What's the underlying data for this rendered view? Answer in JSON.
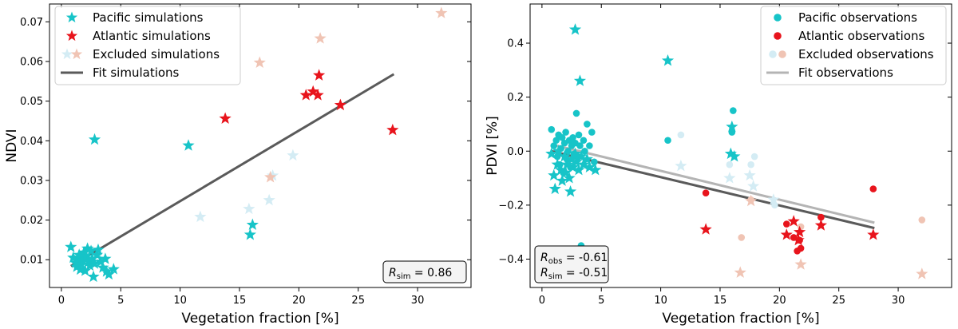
{
  "chart_data": [
    {
      "type": "scatter",
      "title": "",
      "xlabel": "Vegetation fraction [%]",
      "ylabel": "NDVI",
      "xlim": [
        -1,
        34.5
      ],
      "ylim": [
        0.003,
        0.0745
      ],
      "xticks": [
        0,
        5,
        10,
        15,
        20,
        25,
        30
      ],
      "xtick_labels": [
        "0",
        "5",
        "10",
        "15",
        "20",
        "25",
        "30"
      ],
      "yticks": [
        0.01,
        0.02,
        0.03,
        0.04,
        0.05,
        0.06,
        0.07
      ],
      "ytick_labels": [
        "0.01",
        "0.02",
        "0.03",
        "0.04",
        "0.05",
        "0.06",
        "0.07"
      ],
      "legend_position": "top-left",
      "legend": [
        {
          "label": "Pacific simulations",
          "marker": "star",
          "color": "#17c4c8"
        },
        {
          "label": "Atlantic simulations",
          "marker": "star",
          "color": "#e8141c"
        },
        {
          "label": "Excluded simulations",
          "marker": "star-pair",
          "colors": [
            "#d4ecf4",
            "#f0c4b4"
          ]
        },
        {
          "label": "Fit simulations",
          "marker": "line",
          "color": "#5a5a5a"
        }
      ],
      "series": [
        {
          "name": "Pacific simulations",
          "marker": "star",
          "color": "#17c4c8",
          "points": [
            [
              0.8,
              0.0132
            ],
            [
              1.0,
              0.0105
            ],
            [
              1.2,
              0.0092
            ],
            [
              1.3,
              0.0082
            ],
            [
              1.4,
              0.01
            ],
            [
              1.5,
              0.0112
            ],
            [
              1.6,
              0.0075
            ],
            [
              1.7,
              0.0088
            ],
            [
              1.8,
              0.0098
            ],
            [
              1.9,
              0.0118
            ],
            [
              2.0,
              0.0072
            ],
            [
              2.1,
              0.0108
            ],
            [
              2.2,
              0.0128
            ],
            [
              2.3,
              0.0095
            ],
            [
              2.4,
              0.0085
            ],
            [
              2.5,
              0.0122
            ],
            [
              2.6,
              0.0102
            ],
            [
              2.7,
              0.0057
            ],
            [
              2.8,
              0.009
            ],
            [
              3.0,
              0.0112
            ],
            [
              3.1,
              0.0125
            ],
            [
              3.3,
              0.0095
            ],
            [
              3.5,
              0.008
            ],
            [
              3.7,
              0.0102
            ],
            [
              3.8,
              0.007
            ],
            [
              4.0,
              0.0063
            ],
            [
              4.4,
              0.0076
            ],
            [
              2.8,
              0.0403
            ],
            [
              10.7,
              0.0388
            ],
            [
              15.9,
              0.0163
            ],
            [
              16.1,
              0.0188
            ]
          ]
        },
        {
          "name": "Atlantic simulations",
          "marker": "star",
          "color": "#e8141c",
          "points": [
            [
              13.8,
              0.0456
            ],
            [
              20.6,
              0.0515
            ],
            [
              21.2,
              0.0524
            ],
            [
              21.6,
              0.0515
            ],
            [
              21.7,
              0.0565
            ],
            [
              23.5,
              0.049
            ],
            [
              27.9,
              0.0427
            ]
          ]
        },
        {
          "name": "Excluded simulations (Pacific)",
          "marker": "star",
          "color": "#d4ecf4",
          "points": [
            [
              11.7,
              0.0208
            ],
            [
              15.8,
              0.0228
            ],
            [
              17.5,
              0.025
            ],
            [
              17.8,
              0.0312
            ],
            [
              19.5,
              0.0363
            ]
          ]
        },
        {
          "name": "Excluded simulations (Atlantic)",
          "marker": "star",
          "color": "#f0c4b4",
          "points": [
            [
              16.7,
              0.0597
            ],
            [
              17.6,
              0.0308
            ],
            [
              21.8,
              0.0658
            ],
            [
              32.0,
              0.0722
            ]
          ]
        }
      ],
      "fit": {
        "name": "Fit simulations",
        "color": "#5a5a5a",
        "x": [
          0.8,
          28.0
        ],
        "y": [
          0.0084,
          0.0568
        ]
      },
      "annotation": {
        "symbol": "R",
        "subscript": "sim",
        "value": "= 0.86",
        "position": "bottom-right"
      }
    },
    {
      "type": "scatter",
      "title": "",
      "xlabel": "Vegetation fraction [%]",
      "ylabel": "PDVI [%]",
      "xlim": [
        -1,
        34.5
      ],
      "ylim": [
        -0.505,
        0.545
      ],
      "xticks": [
        0,
        5,
        10,
        15,
        20,
        25,
        30
      ],
      "xtick_labels": [
        "0",
        "5",
        "10",
        "15",
        "20",
        "25",
        "30"
      ],
      "yticks": [
        -0.4,
        -0.2,
        0.0,
        0.2,
        0.4
      ],
      "ytick_labels": [
        "−0.4",
        "−0.2",
        "0.0",
        "0.2",
        "0.4"
      ],
      "legend_position": "top-right",
      "legend": [
        {
          "label": "Pacific observations",
          "marker": "circle",
          "color": "#17c4c8"
        },
        {
          "label": "Atlantic observations",
          "marker": "circle",
          "color": "#e8141c"
        },
        {
          "label": "Excluded observations",
          "marker": "circle-pair",
          "colors": [
            "#d4ecf4",
            "#f0c4b4"
          ]
        },
        {
          "label": "Fit observations",
          "marker": "line",
          "color": "#b4b4b4"
        }
      ],
      "series": [
        {
          "name": "Pacific observations",
          "marker": "circle",
          "color": "#17c4c8",
          "points": [
            [
              0.8,
              0.08
            ],
            [
              1.0,
              0.02
            ],
            [
              1.2,
              0.04
            ],
            [
              1.3,
              -0.02
            ],
            [
              1.4,
              0.06
            ],
            [
              1.5,
              -0.05
            ],
            [
              1.6,
              0.01
            ],
            [
              1.7,
              0.05
            ],
            [
              1.8,
              -0.08
            ],
            [
              1.9,
              0.03
            ],
            [
              2.0,
              0.07
            ],
            [
              2.1,
              -0.03
            ],
            [
              2.2,
              0.0
            ],
            [
              2.3,
              0.04
            ],
            [
              2.4,
              -0.06
            ],
            [
              2.5,
              0.02
            ],
            [
              2.6,
              0.05
            ],
            [
              2.7,
              -0.01
            ],
            [
              2.8,
              0.03
            ],
            [
              2.9,
              0.14
            ],
            [
              3.0,
              -0.02
            ],
            [
              3.1,
              0.06
            ],
            [
              3.2,
              0.02
            ],
            [
              3.3,
              -0.35
            ],
            [
              3.5,
              0.04
            ],
            [
              3.6,
              0.0
            ],
            [
              3.8,
              0.1
            ],
            [
              4.0,
              0.02
            ],
            [
              4.2,
              0.07
            ],
            [
              4.4,
              -0.04
            ],
            [
              10.6,
              0.04
            ],
            [
              16.1,
              0.15
            ],
            [
              16.0,
              0.07
            ]
          ]
        },
        {
          "name": "Pacific simulations",
          "marker": "star",
          "color": "#17c4c8",
          "points": [
            [
              0.8,
              -0.01
            ],
            [
              1.0,
              -0.09
            ],
            [
              1.1,
              -0.14
            ],
            [
              1.3,
              -0.05
            ],
            [
              1.4,
              0.0
            ],
            [
              1.6,
              -0.07
            ],
            [
              1.7,
              -0.11
            ],
            [
              1.9,
              -0.02
            ],
            [
              2.0,
              -0.08
            ],
            [
              2.1,
              -0.05
            ],
            [
              2.3,
              -0.1
            ],
            [
              2.4,
              -0.15
            ],
            [
              2.5,
              -0.03
            ],
            [
              2.6,
              -0.06
            ],
            [
              2.8,
              -0.01
            ],
            [
              2.9,
              -0.04
            ],
            [
              3.1,
              -0.07
            ],
            [
              3.3,
              -0.02
            ],
            [
              3.5,
              -0.05
            ],
            [
              3.8,
              -0.03
            ],
            [
              4.0,
              -0.06
            ],
            [
              4.5,
              -0.07
            ],
            [
              2.8,
              0.45
            ],
            [
              3.2,
              0.26
            ],
            [
              10.6,
              0.335
            ],
            [
              15.9,
              -0.01
            ],
            [
              16.0,
              0.09
            ],
            [
              16.2,
              -0.02
            ]
          ]
        },
        {
          "name": "Atlantic observations",
          "marker": "circle",
          "color": "#e8141c",
          "points": [
            [
              13.8,
              -0.155
            ],
            [
              20.6,
              -0.27
            ],
            [
              21.2,
              -0.32
            ],
            [
              21.5,
              -0.37
            ],
            [
              21.7,
              -0.33
            ],
            [
              21.8,
              -0.36
            ],
            [
              23.5,
              -0.245
            ],
            [
              27.9,
              -0.14
            ]
          ]
        },
        {
          "name": "Atlantic simulations",
          "marker": "star",
          "color": "#e8141c",
          "points": [
            [
              13.8,
              -0.29
            ],
            [
              20.6,
              -0.31
            ],
            [
              21.2,
              -0.26
            ],
            [
              21.6,
              -0.33
            ],
            [
              21.7,
              -0.3
            ],
            [
              23.5,
              -0.275
            ],
            [
              27.9,
              -0.31
            ]
          ]
        },
        {
          "name": "Excluded observations (Pacific)",
          "marker": "circle",
          "color": "#d4ecf4",
          "points": [
            [
              11.7,
              0.06
            ],
            [
              15.8,
              -0.05
            ],
            [
              17.6,
              -0.05
            ],
            [
              17.9,
              -0.02
            ],
            [
              19.6,
              -0.2
            ]
          ]
        },
        {
          "name": "Excluded simulations (Pacific)",
          "marker": "star",
          "color": "#d4ecf4",
          "points": [
            [
              11.7,
              -0.055
            ],
            [
              15.8,
              -0.1
            ],
            [
              17.5,
              -0.09
            ],
            [
              17.8,
              -0.13
            ],
            [
              19.5,
              -0.18
            ]
          ]
        },
        {
          "name": "Excluded observations (Atlantic)",
          "marker": "circle",
          "color": "#f0c4b4",
          "points": [
            [
              16.8,
              -0.32
            ],
            [
              17.6,
              -0.18
            ],
            [
              21.8,
              -0.28
            ],
            [
              32.0,
              -0.255
            ]
          ]
        },
        {
          "name": "Excluded simulations (Atlantic)",
          "marker": "star",
          "color": "#f0c4b4",
          "points": [
            [
              16.7,
              -0.45
            ],
            [
              17.6,
              -0.185
            ],
            [
              21.8,
              -0.42
            ],
            [
              32.0,
              -0.455
            ]
          ]
        }
      ],
      "fits": [
        {
          "name": "Fit observations",
          "color": "#b4b4b4",
          "x": [
            0.8,
            28.0
          ],
          "y": [
            0.025,
            -0.265
          ]
        },
        {
          "name": "Fit simulations",
          "color": "#5a5a5a",
          "x": [
            0.8,
            28.0
          ],
          "y": [
            0.0,
            -0.285
          ]
        }
      ],
      "annotation": [
        {
          "symbol": "R",
          "subscript": "obs",
          "value": "= -0.61"
        },
        {
          "symbol": "R",
          "subscript": "sim",
          "value": "= -0.51"
        }
      ],
      "annotation_position": "bottom-left"
    }
  ]
}
